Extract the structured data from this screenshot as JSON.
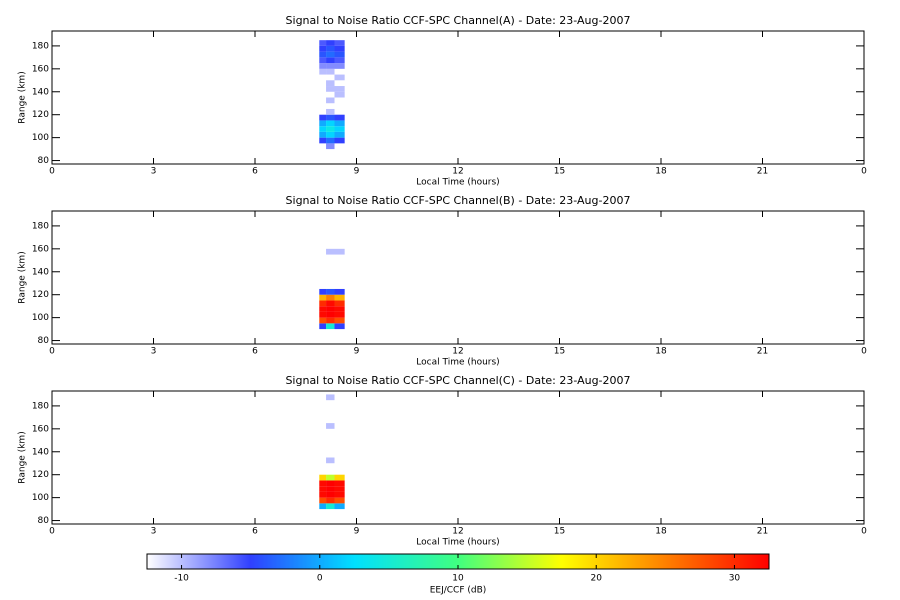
{
  "chart_data": [
    {
      "type": "heatmap",
      "title": "Signal to Noise Ratio CCF-SPC Channel(A) - Date: 23-Aug-2007",
      "xlabel": "Local Time (hours)",
      "ylabel": "Range (km)",
      "xlim": [
        0,
        24
      ],
      "xticks": [
        0,
        3,
        6,
        9,
        12,
        15,
        18,
        21,
        {
          "value": 24,
          "label": "0"
        }
      ],
      "ylim": [
        77,
        193
      ],
      "yticks": [
        80,
        100,
        120,
        140,
        160,
        180
      ],
      "x_bins": [
        7.9,
        8.1,
        8.35,
        8.65
      ],
      "y_bins": [
        90,
        95,
        100,
        105,
        110,
        115,
        120,
        125,
        130,
        135,
        140,
        145,
        150,
        155,
        160,
        165,
        170,
        175,
        180,
        185,
        190
      ],
      "values": [
        [
          null,
          -8,
          null
        ],
        [
          -5,
          -3,
          -5
        ],
        [
          0,
          2,
          0
        ],
        [
          2,
          4,
          2
        ],
        [
          0,
          2,
          0
        ],
        [
          -5,
          -4,
          -5
        ],
        [
          null,
          -10,
          null
        ],
        [
          null,
          null,
          null
        ],
        [
          null,
          -10,
          null
        ],
        [
          null,
          null,
          -10
        ],
        [
          null,
          -10,
          -10
        ],
        [
          null,
          -10,
          null
        ],
        [
          null,
          null,
          -10
        ],
        [
          -10,
          -10,
          null
        ],
        [
          -8,
          -8,
          -8
        ],
        [
          -6,
          -5,
          -6
        ],
        [
          -4,
          -3,
          -4
        ],
        [
          -5,
          -4,
          -5
        ],
        [
          -6,
          -5,
          -6
        ],
        [
          null,
          null,
          null
        ]
      ]
    },
    {
      "type": "heatmap",
      "title": "Signal to Noise Ratio CCF-SPC Channel(B) - Date: 23-Aug-2007",
      "xlabel": "Local Time (hours)",
      "ylabel": "Range (km)",
      "xlim": [
        0,
        24
      ],
      "xticks": [
        0,
        3,
        6,
        9,
        12,
        15,
        18,
        21,
        {
          "value": 24,
          "label": "0"
        }
      ],
      "ylim": [
        77,
        193
      ],
      "yticks": [
        80,
        100,
        120,
        140,
        160,
        180
      ],
      "x_bins": [
        7.9,
        8.1,
        8.35,
        8.65
      ],
      "y_bins": [
        90,
        95,
        100,
        105,
        110,
        115,
        120,
        125,
        130,
        135,
        140,
        145,
        150,
        155,
        160,
        165,
        170,
        175,
        180,
        185,
        190
      ],
      "values": [
        [
          -5,
          5,
          -5
        ],
        [
          28,
          30,
          28
        ],
        [
          32,
          33,
          32
        ],
        [
          32,
          33,
          32
        ],
        [
          30,
          32,
          30
        ],
        [
          22,
          25,
          22
        ],
        [
          -5,
          -4,
          -5
        ],
        [
          null,
          null,
          null
        ],
        [
          null,
          null,
          null
        ],
        [
          null,
          null,
          null
        ],
        [
          null,
          null,
          null
        ],
        [
          null,
          null,
          null
        ],
        [
          null,
          null,
          null
        ],
        [
          null,
          -10,
          -10
        ],
        [
          null,
          null,
          null
        ],
        [
          null,
          null,
          null
        ],
        [
          null,
          null,
          null
        ],
        [
          null,
          null,
          null
        ],
        [
          null,
          null,
          null
        ],
        [
          null,
          null,
          null
        ]
      ]
    },
    {
      "type": "heatmap",
      "title": "Signal to Noise Ratio CCF-SPC Channel(C) - Date: 23-Aug-2007",
      "xlabel": "Local Time (hours)",
      "ylabel": "Range (km)",
      "xlim": [
        0,
        24
      ],
      "xticks": [
        0,
        3,
        6,
        9,
        12,
        15,
        18,
        21,
        {
          "value": 24,
          "label": "0"
        }
      ],
      "ylim": [
        77,
        193
      ],
      "yticks": [
        80,
        100,
        120,
        140,
        160,
        180
      ],
      "x_bins": [
        7.9,
        8.1,
        8.35,
        8.65
      ],
      "y_bins": [
        90,
        95,
        100,
        105,
        110,
        115,
        120,
        125,
        130,
        135,
        140,
        145,
        150,
        155,
        160,
        165,
        170,
        175,
        180,
        185,
        190
      ],
      "values": [
        [
          0,
          5,
          0
        ],
        [
          28,
          30,
          28
        ],
        [
          32,
          33,
          32
        ],
        [
          32,
          33,
          32
        ],
        [
          32,
          33,
          32
        ],
        [
          20,
          15,
          20
        ],
        [
          null,
          null,
          null
        ],
        [
          null,
          null,
          null
        ],
        [
          null,
          -10,
          null
        ],
        [
          null,
          null,
          null
        ],
        [
          null,
          null,
          null
        ],
        [
          null,
          null,
          null
        ],
        [
          null,
          null,
          null
        ],
        [
          null,
          null,
          null
        ],
        [
          null,
          -10,
          null
        ],
        [
          null,
          null,
          null
        ],
        [
          null,
          null,
          null
        ],
        [
          null,
          null,
          null
        ],
        [
          null,
          null,
          null
        ],
        [
          null,
          -10,
          null
        ]
      ]
    }
  ],
  "colorbar": {
    "label": "EEJ/CCF (dB)",
    "lim": [
      -12.5,
      32.5
    ],
    "ticks": [
      -10,
      0,
      10,
      20,
      30
    ],
    "colors": [
      "#ffffff",
      "#3040ff",
      "#00e0ff",
      "#40ff80",
      "#ffff00",
      "#ff8000",
      "#ff0000"
    ]
  }
}
